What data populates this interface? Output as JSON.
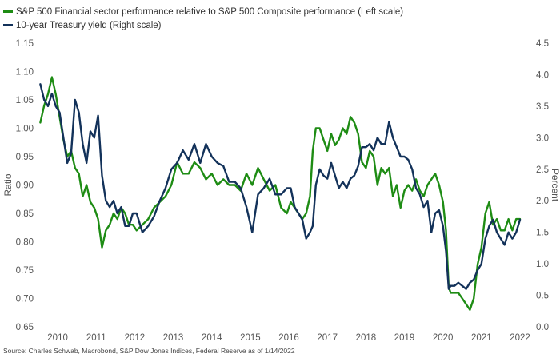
{
  "chart_data": {
    "type": "line",
    "legend": {
      "placement": "top-left",
      "items": [
        {
          "label": "S&P 500 Financial sector performance relative to S&P 500 Composite performance  (Left scale)",
          "color": "#1e8c14"
        },
        {
          "label": "10-year Treasury yield (Right scale)",
          "color": "#13325a"
        }
      ]
    },
    "left_axis": {
      "label": "Ratio",
      "ylim": [
        0.65,
        1.15
      ],
      "ticks": [
        "0.65",
        "0.70",
        "0.75",
        "0.80",
        "0.85",
        "0.90",
        "0.95",
        "1.00",
        "1.05",
        "1.10",
        "1.15"
      ]
    },
    "right_axis": {
      "label": "Percent",
      "ylim": [
        0.0,
        4.5
      ],
      "ticks": [
        "0.0",
        "0.5",
        "1.0",
        "1.5",
        "2.0",
        "2.5",
        "3.0",
        "3.5",
        "4.0",
        "4.5"
      ]
    },
    "x_axis": {
      "xlim": [
        2009.5,
        2022.0
      ],
      "ticks": [
        "2010",
        "2011",
        "2012",
        "2013",
        "2014",
        "2015",
        "2016",
        "2017",
        "2018",
        "2019",
        "2020",
        "2021",
        "2022"
      ]
    },
    "grid": false,
    "series": [
      {
        "name": "S&P 500 Financial sector performance relative to S&P 500 Composite performance  (Left scale)",
        "axis": "left",
        "color": "#1e8c14",
        "x": [
          2009.55,
          2009.65,
          2009.75,
          2009.85,
          2009.95,
          2010.05,
          2010.15,
          2010.25,
          2010.35,
          2010.45,
          2010.55,
          2010.65,
          2010.75,
          2010.85,
          2010.95,
          2011.05,
          2011.15,
          2011.25,
          2011.35,
          2011.45,
          2011.55,
          2011.65,
          2011.75,
          2011.85,
          2011.95,
          2012.05,
          2012.2,
          2012.35,
          2012.5,
          2012.65,
          2012.8,
          2012.95,
          2013.1,
          2013.25,
          2013.4,
          2013.55,
          2013.7,
          2013.85,
          2014.0,
          2014.15,
          2014.3,
          2014.45,
          2014.6,
          2014.75,
          2014.9,
          2015.05,
          2015.2,
          2015.35,
          2015.5,
          2015.65,
          2015.8,
          2015.95,
          2016.05,
          2016.15,
          2016.25,
          2016.35,
          2016.45,
          2016.55,
          2016.62,
          2016.7,
          2016.8,
          2016.9,
          2017.0,
          2017.1,
          2017.2,
          2017.3,
          2017.4,
          2017.5,
          2017.6,
          2017.7,
          2017.8,
          2017.9,
          2018.0,
          2018.1,
          2018.2,
          2018.3,
          2018.4,
          2018.5,
          2018.6,
          2018.7,
          2018.8,
          2018.9,
          2019.0,
          2019.1,
          2019.2,
          2019.3,
          2019.4,
          2019.5,
          2019.6,
          2019.7,
          2019.8,
          2019.9,
          2020.0,
          2020.08,
          2020.15,
          2020.2,
          2020.3,
          2020.4,
          2020.5,
          2020.6,
          2020.7,
          2020.8,
          2020.9,
          2021.0,
          2021.1,
          2021.2,
          2021.3,
          2021.4,
          2021.5,
          2021.6,
          2021.7,
          2021.8,
          2021.9,
          2022.0
        ],
        "values": [
          1.01,
          1.04,
          1.06,
          1.09,
          1.06,
          1.02,
          0.98,
          0.95,
          0.96,
          0.93,
          0.92,
          0.88,
          0.9,
          0.87,
          0.86,
          0.84,
          0.79,
          0.82,
          0.83,
          0.85,
          0.84,
          0.86,
          0.85,
          0.83,
          0.83,
          0.82,
          0.83,
          0.84,
          0.86,
          0.87,
          0.88,
          0.9,
          0.94,
          0.92,
          0.92,
          0.94,
          0.93,
          0.91,
          0.92,
          0.9,
          0.91,
          0.9,
          0.9,
          0.89,
          0.92,
          0.9,
          0.93,
          0.91,
          0.89,
          0.9,
          0.86,
          0.85,
          0.87,
          0.86,
          0.85,
          0.84,
          0.85,
          0.88,
          0.96,
          1.0,
          1.0,
          0.98,
          0.96,
          0.99,
          0.97,
          0.98,
          1.0,
          0.99,
          1.02,
          1.01,
          0.99,
          0.94,
          0.93,
          0.96,
          0.95,
          0.9,
          0.93,
          0.92,
          0.93,
          0.88,
          0.9,
          0.86,
          0.89,
          0.9,
          0.89,
          0.91,
          0.89,
          0.88,
          0.9,
          0.91,
          0.92,
          0.9,
          0.87,
          0.82,
          0.72,
          0.71,
          0.71,
          0.71,
          0.7,
          0.69,
          0.68,
          0.7,
          0.76,
          0.79,
          0.85,
          0.87,
          0.83,
          0.84,
          0.82,
          0.82,
          0.84,
          0.82,
          0.84,
          0.84
        ]
      },
      {
        "name": "10-year Treasury yield (Right scale)",
        "axis": "right",
        "color": "#13325a",
        "x": [
          2009.55,
          2009.65,
          2009.75,
          2009.85,
          2009.95,
          2010.05,
          2010.15,
          2010.25,
          2010.35,
          2010.45,
          2010.55,
          2010.65,
          2010.75,
          2010.85,
          2010.95,
          2011.05,
          2011.15,
          2011.25,
          2011.35,
          2011.45,
          2011.55,
          2011.65,
          2011.75,
          2011.85,
          2011.95,
          2012.05,
          2012.2,
          2012.35,
          2012.5,
          2012.65,
          2012.8,
          2012.95,
          2013.1,
          2013.25,
          2013.4,
          2013.55,
          2013.7,
          2013.85,
          2014.0,
          2014.15,
          2014.3,
          2014.45,
          2014.6,
          2014.75,
          2014.9,
          2015.05,
          2015.2,
          2015.35,
          2015.5,
          2015.65,
          2015.8,
          2015.95,
          2016.05,
          2016.15,
          2016.25,
          2016.35,
          2016.45,
          2016.55,
          2016.62,
          2016.7,
          2016.8,
          2016.9,
          2017.0,
          2017.1,
          2017.2,
          2017.3,
          2017.4,
          2017.5,
          2017.6,
          2017.7,
          2017.8,
          2017.9,
          2018.0,
          2018.1,
          2018.2,
          2018.3,
          2018.4,
          2018.5,
          2018.6,
          2018.7,
          2018.8,
          2018.9,
          2019.0,
          2019.1,
          2019.2,
          2019.3,
          2019.4,
          2019.5,
          2019.6,
          2019.7,
          2019.8,
          2019.9,
          2020.0,
          2020.08,
          2020.15,
          2020.2,
          2020.3,
          2020.4,
          2020.5,
          2020.6,
          2020.7,
          2020.8,
          2020.9,
          2021.0,
          2021.1,
          2021.2,
          2021.3,
          2021.4,
          2021.5,
          2021.6,
          2021.7,
          2021.8,
          2021.9,
          2022.0
        ],
        "values": [
          3.85,
          3.6,
          3.5,
          3.7,
          3.5,
          3.4,
          3.0,
          2.6,
          2.75,
          3.6,
          3.4,
          2.9,
          2.6,
          3.1,
          3.0,
          3.35,
          2.4,
          2.0,
          1.9,
          2.0,
          1.8,
          1.9,
          1.6,
          1.6,
          1.8,
          1.8,
          1.5,
          1.6,
          1.75,
          2.0,
          2.2,
          2.5,
          2.6,
          2.8,
          2.65,
          2.9,
          2.6,
          2.9,
          2.7,
          2.6,
          2.55,
          2.3,
          2.3,
          2.2,
          1.9,
          1.5,
          2.1,
          2.2,
          2.35,
          2.1,
          2.1,
          2.2,
          2.2,
          1.9,
          1.8,
          1.7,
          1.4,
          1.5,
          1.6,
          2.25,
          2.5,
          2.4,
          2.35,
          2.6,
          2.4,
          2.2,
          2.3,
          2.2,
          2.35,
          2.4,
          2.55,
          2.85,
          2.85,
          2.9,
          2.8,
          3.0,
          2.9,
          2.9,
          3.25,
          3.0,
          2.85,
          2.7,
          2.7,
          2.65,
          2.5,
          2.2,
          2.1,
          1.9,
          2.0,
          1.5,
          1.8,
          1.85,
          1.6,
          1.2,
          0.6,
          0.65,
          0.65,
          0.7,
          0.65,
          0.6,
          0.7,
          0.75,
          0.9,
          1.0,
          1.4,
          1.6,
          1.7,
          1.5,
          1.4,
          1.3,
          1.5,
          1.4,
          1.5,
          1.7
        ]
      }
    ]
  },
  "source": "Source: Charles Schwab, Macrobond, S&P Dow Jones Indices, Federal Reserve as of 1/14/2022"
}
